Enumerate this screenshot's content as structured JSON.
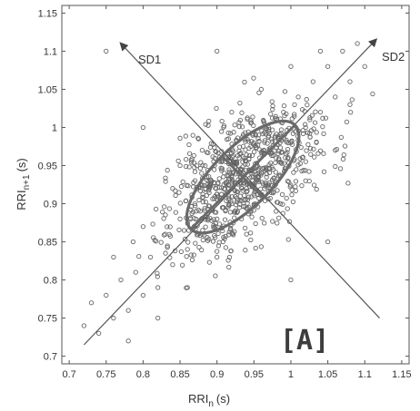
{
  "chart_data": {
    "type": "scatter",
    "title": "",
    "xlabel": "RRI",
    "xlabel_sub": "n",
    "xlabel_unit": "(s)",
    "ylabel": "RRI",
    "ylabel_sub": "n+1",
    "ylabel_unit": "(s)",
    "xlim": [
      0.69,
      1.16
    ],
    "ylim": [
      0.69,
      1.16
    ],
    "xticks": [
      "0.7",
      "0.75",
      "0.8",
      "0.85",
      "0.9",
      "0.95",
      "1",
      "1.05",
      "1.1",
      "1.15"
    ],
    "yticks": [
      "0.7",
      "0.75",
      "0.8",
      "0.85",
      "0.9",
      "0.95",
      "1",
      "1.05",
      "1.1",
      "1.15"
    ],
    "grid": false,
    "annotations": {
      "sd1_label": "SD1",
      "sd2_label": "SD2",
      "panel_label": "[A]"
    },
    "ellipse": {
      "center": [
        0.935,
        0.935
      ],
      "sd1": 0.038,
      "sd2": 0.095
    },
    "sd1_axis": {
      "from": [
        1.12,
        0.75
      ],
      "to": [
        0.77,
        1.11
      ]
    },
    "sd2_axis": {
      "from": [
        0.72,
        0.715
      ],
      "to": [
        1.115,
        1.115
      ]
    },
    "series": [
      {
        "marker": "open-circle",
        "color": "#666666",
        "points_summary": "about 900 RR-interval pairs clustered along the identity line; reproduced as a sampled point cloud",
        "points": [
          [
            0.72,
            0.74
          ],
          [
            0.73,
            0.77
          ],
          [
            0.74,
            0.73
          ],
          [
            0.75,
            0.78
          ],
          [
            0.76,
            0.75
          ],
          [
            0.77,
            0.8
          ],
          [
            0.78,
            0.76
          ],
          [
            0.79,
            0.81
          ],
          [
            0.8,
            0.78
          ],
          [
            0.81,
            0.83
          ],
          [
            0.82,
            0.79
          ],
          [
            0.83,
            0.86
          ],
          [
            0.84,
            0.82
          ],
          [
            0.85,
            0.88
          ],
          [
            0.86,
            0.84
          ],
          [
            0.87,
            0.9
          ],
          [
            0.88,
            0.86
          ],
          [
            0.89,
            0.92
          ],
          [
            0.9,
            0.88
          ],
          [
            0.91,
            0.94
          ],
          [
            0.92,
            0.9
          ],
          [
            0.93,
            0.96
          ],
          [
            0.94,
            0.92
          ],
          [
            0.95,
            0.98
          ],
          [
            0.96,
            0.94
          ],
          [
            0.97,
            1.0
          ],
          [
            0.98,
            0.96
          ],
          [
            0.99,
            1.02
          ],
          [
            1.0,
            0.98
          ],
          [
            1.01,
            1.04
          ],
          [
            1.02,
            1.0
          ],
          [
            1.03,
            1.06
          ],
          [
            1.04,
            1.02
          ],
          [
            1.05,
            1.08
          ],
          [
            1.06,
            1.04
          ],
          [
            1.07,
            1.1
          ],
          [
            1.08,
            1.06
          ],
          [
            1.09,
            1.11
          ],
          [
            1.1,
            1.08
          ],
          [
            0.76,
            0.83
          ],
          [
            0.78,
            0.72
          ],
          [
            0.8,
            0.87
          ],
          [
            0.82,
            0.75
          ],
          [
            0.84,
            0.92
          ],
          [
            0.86,
            0.79
          ],
          [
            0.88,
            0.97
          ],
          [
            0.9,
            0.83
          ],
          [
            0.92,
            1.02
          ],
          [
            0.94,
            0.86
          ],
          [
            0.96,
            1.05
          ],
          [
            0.98,
            0.89
          ],
          [
            1.0,
            1.08
          ],
          [
            1.02,
            0.93
          ],
          [
            1.04,
            1.1
          ],
          [
            1.06,
            0.97
          ],
          [
            1.08,
            1.03
          ],
          [
            0.75,
            1.1
          ],
          [
            0.8,
            1.0
          ],
          [
            0.85,
            0.95
          ],
          [
            0.9,
            1.1
          ],
          [
            1.0,
            0.8
          ],
          [
            1.05,
            0.85
          ]
        ]
      }
    ]
  }
}
